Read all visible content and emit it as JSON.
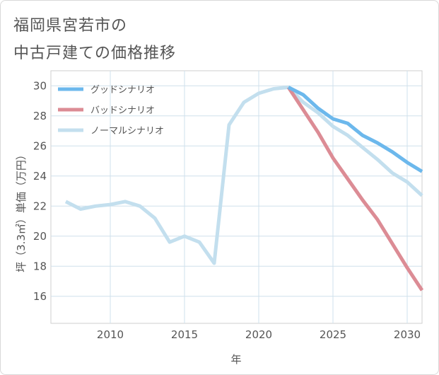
{
  "title_lines": [
    "福岡県宮若市の",
    "中古戸建ての価格推移"
  ],
  "chart_data": {
    "type": "line",
    "title": "福岡県宮若市の中古戸建ての価格推移",
    "xlabel": "年",
    "ylabel": "坪（3.3㎡）単価（万円）",
    "xlim": [
      2006,
      2031
    ],
    "ylim": [
      14.2,
      31
    ],
    "xticks": [
      2010,
      2015,
      2020,
      2025,
      2030
    ],
    "yticks": [
      16,
      18,
      20,
      22,
      24,
      26,
      28,
      30
    ],
    "grid": true,
    "legend_position": "top-left",
    "series": [
      {
        "name": "グッドシナリオ",
        "color": "#6cb8ec",
        "x": [
          2022,
          2023,
          2024,
          2025,
          2026,
          2027,
          2028,
          2029,
          2030,
          2031
        ],
        "y": [
          29.9,
          29.4,
          28.5,
          27.8,
          27.5,
          26.7,
          26.2,
          25.6,
          24.9,
          24.3
        ]
      },
      {
        "name": "バッドシナリオ",
        "color": "#dc8c95",
        "x": [
          2022,
          2023,
          2024,
          2025,
          2026,
          2027,
          2028,
          2029,
          2030,
          2031
        ],
        "y": [
          29.9,
          28.4,
          26.9,
          25.2,
          23.8,
          22.4,
          21.1,
          19.5,
          17.9,
          16.4
        ]
      },
      {
        "name": "ノーマルシナリオ",
        "color": "#c3dfee",
        "x": [
          2007,
          2008,
          2009,
          2010,
          2011,
          2012,
          2013,
          2014,
          2015,
          2016,
          2017,
          2018,
          2019,
          2020,
          2021,
          2022,
          2023,
          2024,
          2025,
          2026,
          2027,
          2028,
          2029,
          2030,
          2031
        ],
        "y": [
          22.3,
          21.8,
          22.0,
          22.1,
          22.3,
          22.0,
          21.2,
          19.6,
          20.0,
          19.6,
          18.2,
          27.4,
          28.9,
          29.5,
          29.8,
          29.9,
          28.9,
          28.2,
          27.3,
          26.7,
          25.9,
          25.1,
          24.2,
          23.6,
          22.7
        ]
      }
    ]
  }
}
